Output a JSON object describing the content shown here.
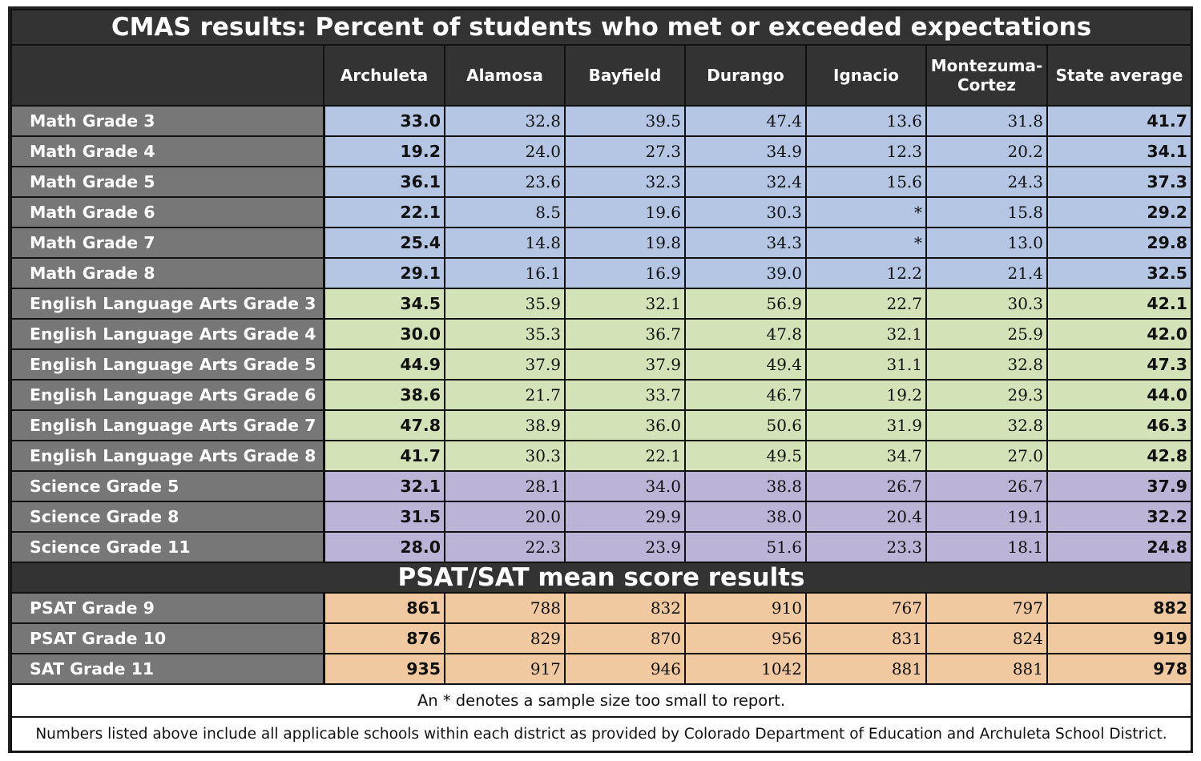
{
  "title": "CMAS results: Percent of students who met or exceeded expectations",
  "columns": [
    {
      "id": "archuleta",
      "label": "Archuleta",
      "bold": true
    },
    {
      "id": "alamosa",
      "label": "Alamosa",
      "bold": false
    },
    {
      "id": "bayfield",
      "label": "Bayfield",
      "bold": false
    },
    {
      "id": "durango",
      "label": "Durango",
      "bold": false
    },
    {
      "id": "ignacio",
      "label": "Ignacio",
      "bold": false
    },
    {
      "id": "montezuma",
      "label": "Montezuma-\nCortez",
      "bold": false
    },
    {
      "id": "state",
      "label": "State average",
      "bold": true
    }
  ],
  "cmas_rows": [
    {
      "group": "math",
      "label": "Math Grade 3",
      "values": [
        "33.0",
        "32.8",
        "39.5",
        "47.4",
        "13.6",
        "31.8",
        "41.7"
      ]
    },
    {
      "group": "math",
      "label": "Math Grade 4",
      "values": [
        "19.2",
        "24.0",
        "27.3",
        "34.9",
        "12.3",
        "20.2",
        "34.1"
      ]
    },
    {
      "group": "math",
      "label": "Math Grade 5",
      "values": [
        "36.1",
        "23.6",
        "32.3",
        "32.4",
        "15.6",
        "24.3",
        "37.3"
      ]
    },
    {
      "group": "math",
      "label": "Math Grade 6",
      "values": [
        "22.1",
        "8.5",
        "19.6",
        "30.3",
        "*",
        "15.8",
        "29.2"
      ]
    },
    {
      "group": "math",
      "label": "Math Grade 7",
      "values": [
        "25.4",
        "14.8",
        "19.8",
        "34.3",
        "*",
        "13.0",
        "29.8"
      ]
    },
    {
      "group": "math",
      "label": "Math Grade 8",
      "values": [
        "29.1",
        "16.1",
        "16.9",
        "39.0",
        "12.2",
        "21.4",
        "32.5"
      ]
    },
    {
      "group": "ela",
      "label": "English Language Arts Grade 3",
      "values": [
        "34.5",
        "35.9",
        "32.1",
        "56.9",
        "22.7",
        "30.3",
        "42.1"
      ]
    },
    {
      "group": "ela",
      "label": "English Language Arts Grade 4",
      "values": [
        "30.0",
        "35.3",
        "36.7",
        "47.8",
        "32.1",
        "25.9",
        "42.0"
      ]
    },
    {
      "group": "ela",
      "label": "English Language Arts Grade 5",
      "values": [
        "44.9",
        "37.9",
        "37.9",
        "49.4",
        "31.1",
        "32.8",
        "47.3"
      ]
    },
    {
      "group": "ela",
      "label": "English Language Arts Grade 6",
      "values": [
        "38.6",
        "21.7",
        "33.7",
        "46.7",
        "19.2",
        "29.3",
        "44.0"
      ]
    },
    {
      "group": "ela",
      "label": "English Language Arts Grade 7",
      "values": [
        "47.8",
        "38.9",
        "36.0",
        "50.6",
        "31.9",
        "32.8",
        "46.3"
      ]
    },
    {
      "group": "ela",
      "label": "English Language Arts Grade 8",
      "values": [
        "41.7",
        "30.3",
        "22.1",
        "49.5",
        "34.7",
        "27.0",
        "42.8"
      ]
    },
    {
      "group": "sci",
      "label": "Science Grade 5",
      "values": [
        "32.1",
        "28.1",
        "34.0",
        "38.8",
        "26.7",
        "26.7",
        "37.9"
      ]
    },
    {
      "group": "sci",
      "label": "Science Grade 8",
      "values": [
        "31.5",
        "20.0",
        "29.9",
        "38.0",
        "20.4",
        "19.1",
        "32.2"
      ]
    },
    {
      "group": "sci",
      "label": "Science Grade 11",
      "values": [
        "28.0",
        "22.3",
        "23.9",
        "51.6",
        "23.3",
        "18.1",
        "24.8"
      ]
    }
  ],
  "sat_title": "PSAT/SAT mean score results",
  "sat_rows": [
    {
      "group": "psat",
      "label": "PSAT Grade 9",
      "values": [
        "861",
        "788",
        "832",
        "910",
        "767",
        "797",
        "882"
      ]
    },
    {
      "group": "psat",
      "label": "PSAT Grade 10",
      "values": [
        "876",
        "829",
        "870",
        "956",
        "831",
        "824",
        "919"
      ]
    },
    {
      "group": "psat",
      "label": "SAT Grade 11",
      "values": [
        "935",
        "917",
        "946",
        "1042",
        "881",
        "881",
        "978"
      ]
    }
  ],
  "notes": {
    "asterisk": "An * denotes a sample size too small to report.",
    "source": "Numbers listed above include all applicable schools within each district as provided by Colorado Department of Education and Archuleta School District."
  },
  "colors": {
    "header_bg": "#333333",
    "label_bg": "#777777",
    "math": "#b4c6e4",
    "ela": "#d4e2b8",
    "science": "#bcb4d6",
    "psat": "#f0c9a0"
  }
}
